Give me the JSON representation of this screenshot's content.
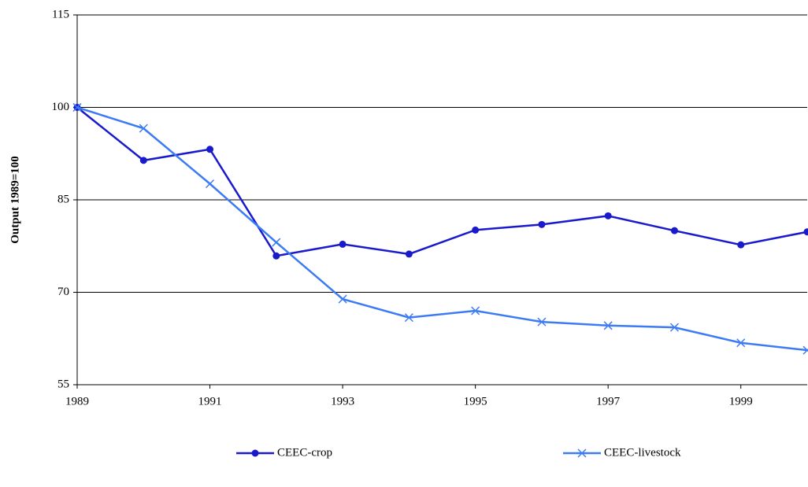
{
  "chart_data": {
    "type": "line",
    "y_label": "Output 1989=100",
    "x": [
      1989,
      1990,
      1991,
      1992,
      1993,
      1994,
      1995,
      1996,
      1997,
      1998,
      1999,
      2000
    ],
    "series": [
      {
        "name": "CEEC-crop",
        "color": "#1a1acd",
        "marker": "circle",
        "values": [
          100,
          91.4,
          93.2,
          75.9,
          77.8,
          76.2,
          80.1,
          81.0,
          82.4,
          80.0,
          77.7,
          79.8
        ]
      },
      {
        "name": "CEEC-livestock",
        "color": "#3d7bf5",
        "marker": "x",
        "values": [
          100,
          96.6,
          87.6,
          78.1,
          68.9,
          65.9,
          67.0,
          65.2,
          64.6,
          64.3,
          61.8,
          60.6
        ]
      }
    ],
    "xlim": [
      1989,
      2000
    ],
    "xticks": [
      1989,
      1991,
      1993,
      1995,
      1997,
      1999
    ],
    "ylim": [
      55,
      115
    ],
    "yticks": [
      55,
      70,
      85,
      100,
      115
    ],
    "grid": true,
    "legend": "bottom"
  }
}
